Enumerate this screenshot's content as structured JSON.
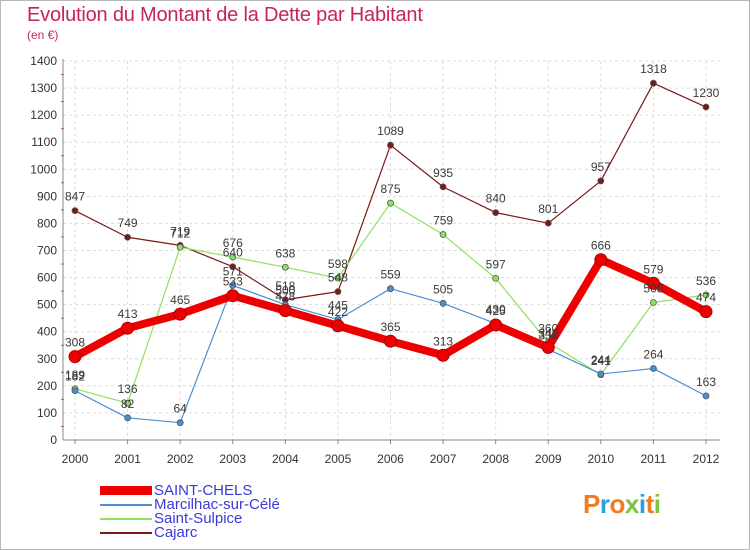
{
  "title": "Evolution du Montant de la Dette par Habitant",
  "unit": "(en €)",
  "logo": {
    "letters": [
      "P",
      "r",
      "o",
      "x",
      "i",
      "t",
      "i"
    ],
    "colors": [
      "#f47a1f",
      "#2aa0dc",
      "#f47a1f",
      "#7ec242",
      "#2aa0dc",
      "#f47a1f",
      "#7ec242"
    ]
  },
  "chart_data": {
    "type": "line",
    "x": [
      2000,
      2001,
      2002,
      2003,
      2004,
      2005,
      2006,
      2007,
      2008,
      2009,
      2010,
      2011,
      2012
    ],
    "ylim": [
      0,
      1400
    ],
    "yticks": [
      0,
      100,
      200,
      300,
      400,
      500,
      600,
      700,
      800,
      900,
      1000,
      1100,
      1200,
      1300,
      1400
    ],
    "grid": true,
    "legend": "bottom-left",
    "series": [
      {
        "name": "SAINT-CHELS",
        "color": "#ee0000",
        "values": [
          308,
          413,
          465,
          533,
          478,
          422,
          365,
          313,
          425,
          342,
          666,
          579,
          474
        ]
      },
      {
        "name": "Marcilhac-sur-Célé",
        "color": "#4a8fd0",
        "values": [
          182,
          82,
          64,
          571,
          500,
          445,
          559,
          505,
          430,
          335,
          244,
          264,
          163
        ]
      },
      {
        "name": "Saint-Sulpice",
        "color": "#8ee060",
        "values": [
          189,
          136,
          712,
          676,
          638,
          598,
          875,
          759,
          597,
          360,
          241,
          508,
          536
        ]
      },
      {
        "name": "Cajarc",
        "color": "#7a1818",
        "values": [
          847,
          749,
          719,
          640,
          518,
          548,
          1089,
          935,
          840,
          801,
          957,
          1318,
          1230
        ]
      }
    ],
    "labels": [
      {
        "series": 0,
        "labels": [
          "308",
          "413",
          "465",
          "533",
          "478",
          "422",
          "365",
          "313",
          "425",
          "342",
          "666",
          "579",
          "474"
        ]
      },
      {
        "series": 1,
        "labels": [
          "182",
          "82",
          "64",
          "571",
          "500",
          "445",
          "559",
          "505",
          "430",
          "335",
          "244",
          "264",
          "163"
        ]
      },
      {
        "series": 2,
        "labels": [
          "189",
          "136",
          "712",
          "676",
          "638",
          "598",
          "875",
          "759",
          "597",
          "360",
          "241",
          "508",
          "536"
        ]
      },
      {
        "series": 3,
        "labels": [
          "847",
          "749",
          "719",
          "640",
          "518",
          "548",
          "1089",
          "935",
          "840",
          "801",
          "957",
          "1318",
          "1230"
        ]
      }
    ]
  }
}
